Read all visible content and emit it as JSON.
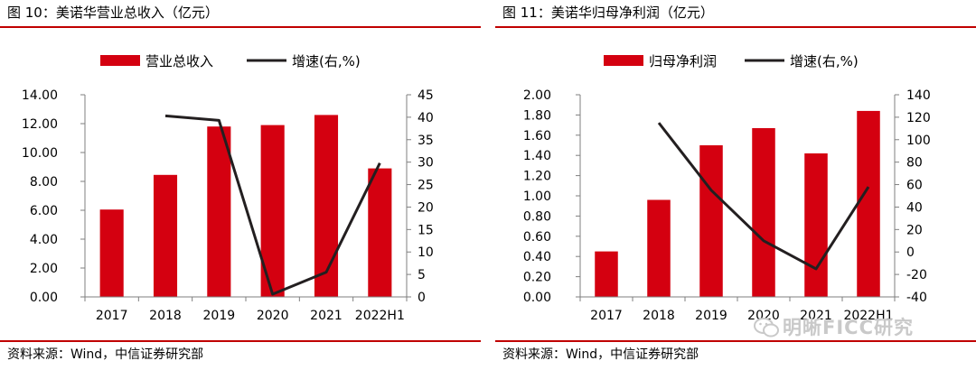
{
  "panels": [
    {
      "figure_title": "图 10：美诺华营业总收入（亿元）",
      "source": "资料来源：Wind，中信证券研究部",
      "legend": {
        "bar": "营业总收入",
        "line": "增速(右,%)"
      }
    },
    {
      "figure_title": "图 11：美诺华归母净利润（亿元）",
      "source": "资料来源：Wind，中信证券研究部",
      "legend": {
        "bar": "归母净利润",
        "line": "增速(右,%)"
      }
    }
  ],
  "watermark": {
    "text": "明晰FICC研究",
    "icon": "wechat-icon"
  },
  "colors": {
    "bar": "#d40010",
    "line": "#231f20",
    "rule": "#c00000",
    "axis": "#7f7f7f"
  },
  "chart_data": [
    {
      "type": "bar",
      "categories": [
        "2017",
        "2018",
        "2019",
        "2020",
        "2021",
        "2022H1"
      ],
      "series": [
        {
          "name": "营业总收入",
          "type": "bar",
          "axis": "left",
          "values": [
            6.05,
            8.45,
            11.8,
            11.9,
            12.6,
            8.9
          ]
        },
        {
          "name": "增速(右,%)",
          "type": "line",
          "axis": "right",
          "values": [
            null,
            40.3,
            39.3,
            0.6,
            5.5,
            29.8
          ]
        }
      ],
      "left_axis": {
        "min": 0,
        "max": 14,
        "step": 2,
        "ticks": [
          "0.00",
          "2.00",
          "4.00",
          "6.00",
          "8.00",
          "10.00",
          "12.00",
          "14.00"
        ]
      },
      "right_axis": {
        "min": 0,
        "max": 45,
        "step": 5,
        "ticks": [
          "0",
          "5",
          "10",
          "15",
          "20",
          "25",
          "30",
          "35",
          "40",
          "45"
        ]
      },
      "grid": false,
      "legend_position": "top"
    },
    {
      "type": "bar",
      "categories": [
        "2017",
        "2018",
        "2019",
        "2020",
        "2021",
        "2022H1"
      ],
      "series": [
        {
          "name": "归母净利润",
          "type": "bar",
          "axis": "left",
          "values": [
            0.45,
            0.96,
            1.5,
            1.67,
            1.42,
            1.84
          ]
        },
        {
          "name": "增速(右,%)",
          "type": "line",
          "axis": "right",
          "values": [
            null,
            115,
            55,
            10,
            -15,
            58
          ]
        }
      ],
      "left_axis": {
        "min": 0,
        "max": 2,
        "step": 0.2,
        "ticks": [
          "0.00",
          "0.20",
          "0.40",
          "0.60",
          "0.80",
          "1.00",
          "1.20",
          "1.40",
          "1.60",
          "1.80",
          "2.00"
        ]
      },
      "right_axis": {
        "min": -40,
        "max": 140,
        "step": 20,
        "ticks": [
          "-40",
          "-20",
          "0",
          "20",
          "40",
          "60",
          "80",
          "100",
          "120",
          "140"
        ]
      },
      "grid": false,
      "legend_position": "top"
    }
  ]
}
